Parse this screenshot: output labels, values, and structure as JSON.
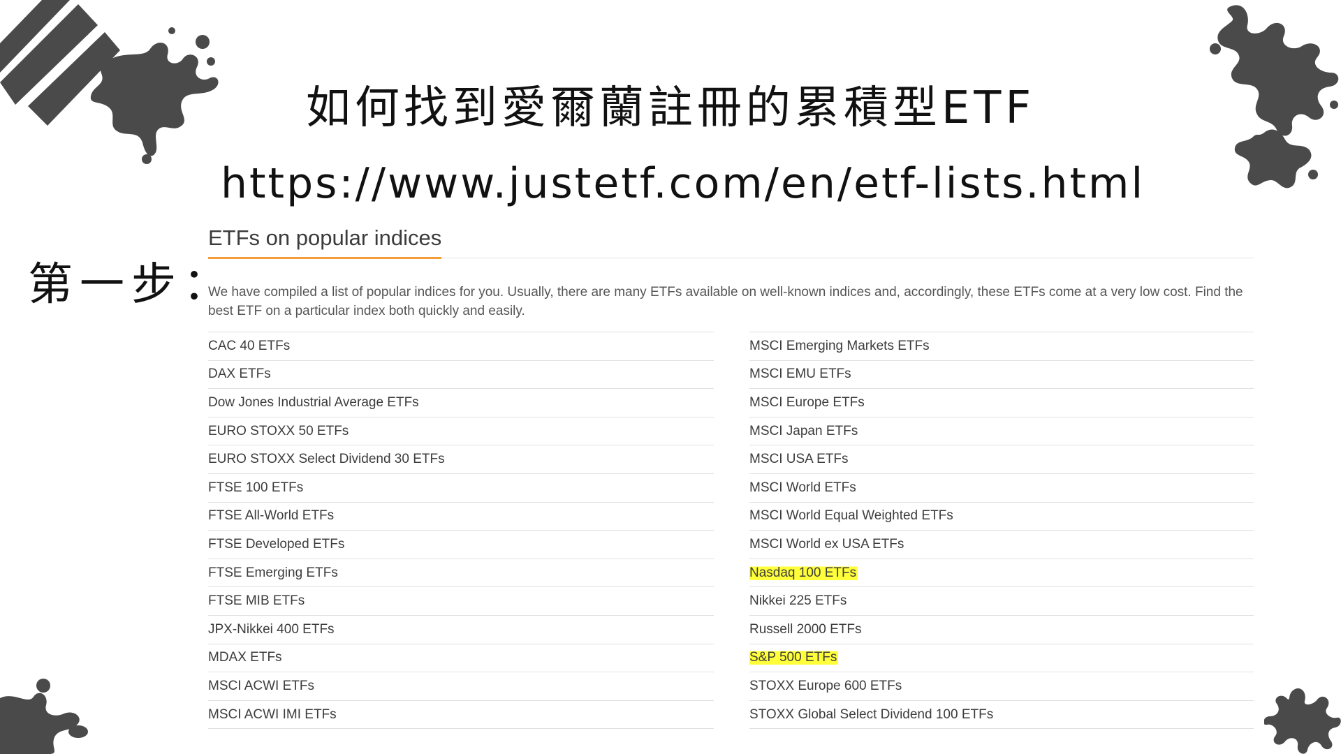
{
  "slide": {
    "title": "如何找到愛爾蘭註冊的累積型ETF",
    "url": "https://www.justetf.com/en/etf-lists.html",
    "step_label": "第一步："
  },
  "section": {
    "heading": "ETFs on popular indices",
    "intro": "We have compiled a list of popular indices for you. Usually, there are many ETFs available on well-known indices and, accordingly, these ETFs come at a very low cost. Find the best ETF on a particular index both quickly and easily.",
    "left_list": [
      {
        "label": "CAC 40 ETFs"
      },
      {
        "label": "DAX ETFs"
      },
      {
        "label": "Dow Jones Industrial Average ETFs"
      },
      {
        "label": "EURO STOXX 50 ETFs"
      },
      {
        "label": "EURO STOXX Select Dividend 30 ETFs"
      },
      {
        "label": "FTSE 100 ETFs"
      },
      {
        "label": "FTSE All-World ETFs"
      },
      {
        "label": "FTSE Developed ETFs"
      },
      {
        "label": "FTSE Emerging ETFs"
      },
      {
        "label": "FTSE MIB ETFs"
      },
      {
        "label": "JPX-Nikkei 400 ETFs"
      },
      {
        "label": "MDAX ETFs"
      },
      {
        "label": "MSCI ACWI ETFs"
      },
      {
        "label": "MSCI ACWI IMI ETFs"
      }
    ],
    "right_list": [
      {
        "label": "MSCI Emerging Markets ETFs"
      },
      {
        "label": "MSCI EMU ETFs"
      },
      {
        "label": "MSCI Europe ETFs"
      },
      {
        "label": "MSCI Japan ETFs"
      },
      {
        "label": "MSCI USA ETFs"
      },
      {
        "label": "MSCI World ETFs"
      },
      {
        "label": "MSCI World Equal Weighted ETFs"
      },
      {
        "label": "MSCI World ex USA ETFs"
      },
      {
        "label": "Nasdaq 100 ETFs",
        "highlighted": true
      },
      {
        "label": "Nikkei 225 ETFs"
      },
      {
        "label": "Russell 2000 ETFs"
      },
      {
        "label": "S&P 500 ETFs",
        "highlighted": true
      },
      {
        "label": "STOXX Europe 600 ETFs"
      },
      {
        "label": "STOXX Global Select Dividend 100 ETFs"
      }
    ]
  },
  "colors": {
    "heading_accent": "#f29d38",
    "highlight": "#ffff3a",
    "decor": "#4a4a4a"
  }
}
